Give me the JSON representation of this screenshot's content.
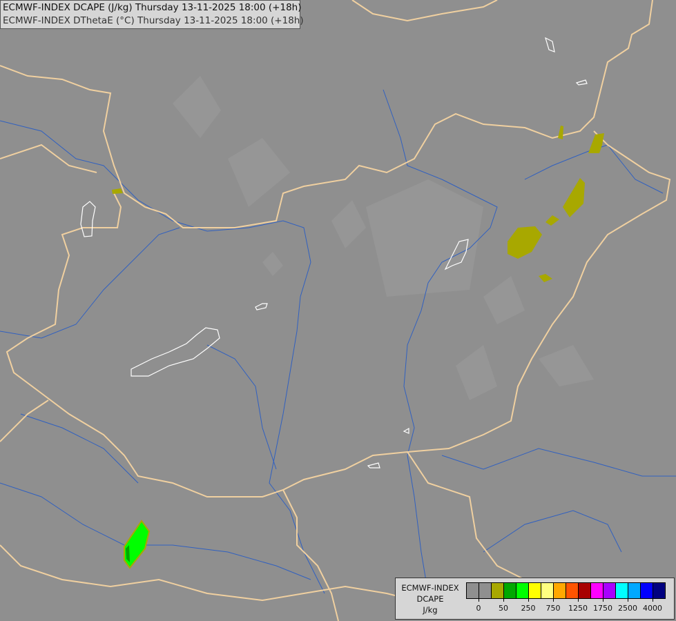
{
  "header": {
    "line1": "ECMWF-INDEX DCAPE (J/kg) Thursday 13-11-2025 18:00 (+18h)",
    "line2": "ECMWF-INDEX DThetaE (°C) Thursday 13-11-2025 18:00 (+18h)"
  },
  "legend": {
    "title_line1": "ECMWF-INDEX",
    "title_line2": "DCAPE",
    "unit": "J/kg",
    "colors": [
      "#8f8f8f",
      "#8f8f8f",
      "#a8a800",
      "#00a800",
      "#00ff00",
      "#ffff00",
      "#ffff80",
      "#ffa800",
      "#ff5400",
      "#a80000",
      "#ff00ff",
      "#a800ff",
      "#00ffff",
      "#00a8ff",
      "#0000ff",
      "#000080"
    ],
    "tick_labels": [
      "0",
      "50",
      "250",
      "750",
      "1250",
      "1750",
      "2500",
      "4000"
    ]
  },
  "map_colors": {
    "background": "#8f8f8f",
    "border": "#f0d0a0",
    "river": "#3060c0",
    "lake": "#ffffff",
    "dcape_low": "#a8a800",
    "dcape_mid": "#00ff00"
  }
}
